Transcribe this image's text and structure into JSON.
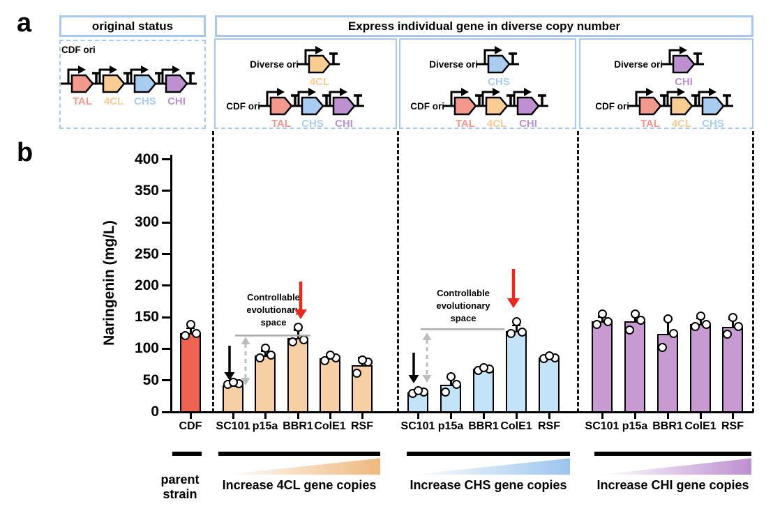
{
  "panel_a": {
    "label": "a",
    "headers": {
      "original": "original status",
      "express": "Express individual gene in diverse copy number"
    },
    "gene_colors": {
      "TAL": "#F2988C",
      "4CL": "#F8CC92",
      "CHS": "#A9CDF0",
      "CHI": "#BE90D1"
    },
    "diagrams": [
      {
        "box": "original-status",
        "rows": [
          {
            "ori": "CDF ori",
            "genes": [
              "TAL",
              "4CL",
              "CHS",
              "CHI"
            ]
          }
        ]
      },
      {
        "box": "4CL-diverse",
        "rows": [
          {
            "ori": "Diverse ori",
            "genes": [
              "4CL"
            ]
          },
          {
            "ori": "CDF ori",
            "genes": [
              "TAL",
              "CHS",
              "CHI"
            ]
          }
        ]
      },
      {
        "box": "CHS-diverse",
        "rows": [
          {
            "ori": "Diverse ori",
            "genes": [
              "CHS"
            ]
          },
          {
            "ori": "CDF ori",
            "genes": [
              "TAL",
              "4CL",
              "CHI"
            ]
          }
        ]
      },
      {
        "box": "CHI-diverse",
        "rows": [
          {
            "ori": "Diverse ori",
            "genes": [
              "CHI"
            ]
          },
          {
            "ori": "CDF ori",
            "genes": [
              "TAL",
              "4CL",
              "CHS"
            ]
          }
        ]
      }
    ]
  },
  "panel_b": {
    "label": "b"
  },
  "chart_data": {
    "type": "bar",
    "title": "",
    "xlabel": "",
    "ylabel": "Naringenin (mg/L)",
    "ylim": [
      0,
      400
    ],
    "yticks": [
      0,
      50,
      100,
      150,
      200,
      250,
      300,
      350,
      400
    ],
    "grid": false,
    "groups": [
      {
        "id": "parent",
        "caption": "parent strain",
        "bar_color": "#EE6352",
        "gradient_color": "",
        "categories": [
          "CDF"
        ],
        "values": [
          125
        ],
        "errors": [
          8
        ],
        "points": [
          [
            121,
            124,
            138
          ]
        ]
      },
      {
        "id": "4CL",
        "caption": "Increase 4CL gene copies",
        "bar_color": "#F6D0A4",
        "gradient_color": "#EFB87E",
        "categories": [
          "SC101",
          "p15a",
          "BBR1",
          "ColE1",
          "RSF"
        ],
        "values": [
          42,
          89,
          117,
          85,
          74
        ],
        "errors": [
          3,
          8,
          13,
          5,
          12
        ],
        "points": [
          [
            44,
            45,
            47
          ],
          [
            86,
            90,
            101
          ],
          [
            111,
            114,
            134
          ],
          [
            81,
            85,
            90
          ],
          [
            61,
            79,
            82
          ]
        ]
      },
      {
        "id": "CHS",
        "caption": "Increase CHS gene copies",
        "bar_color": "#C3E4F8",
        "gradient_color": "#9CC4EE",
        "categories": [
          "SC101",
          "p15a",
          "BBR1",
          "ColE1",
          "RSF"
        ],
        "values": [
          31,
          43,
          68,
          128,
          86
        ],
        "errors": [
          3,
          12,
          3,
          9,
          3
        ],
        "points": [
          [
            29,
            31,
            34
          ],
          [
            32,
            44,
            56
          ],
          [
            66,
            68,
            70
          ],
          [
            124,
            126,
            143
          ],
          [
            84,
            86,
            89
          ]
        ]
      },
      {
        "id": "CHI",
        "caption": "Increase CHI gene copies",
        "bar_color": "#C79AD1",
        "gradient_color": "#BE8FD0",
        "categories": [
          "SC101",
          "p15a",
          "BBR1",
          "ColE1",
          "RSF"
        ],
        "values": [
          143,
          143,
          124,
          139,
          135
        ],
        "errors": [
          8,
          13,
          22,
          9,
          12
        ],
        "points": [
          [
            138,
            143,
            155
          ],
          [
            130,
            145,
            155
          ],
          [
            102,
            124,
            147
          ],
          [
            135,
            139,
            152
          ],
          [
            123,
            135,
            150
          ]
        ]
      }
    ],
    "annotations": [
      {
        "group": "4CL",
        "space_text_lines": [
          "Controllable",
          "evolutionary",
          "space"
        ],
        "black_arrow_at": "SC101",
        "red_arrow_at": "BBR1",
        "gray_line_level": 121
      },
      {
        "group": "CHS",
        "space_text_lines": [
          "Controllable",
          "evolutionary",
          "space"
        ],
        "black_arrow_at": "SC101",
        "red_arrow_at": "ColE1",
        "gray_line_level": 131
      }
    ],
    "arrow_colors": {
      "red": "#E8291F",
      "black": "#000000",
      "gray": "#BDBDBD",
      "gray_line": "#A9A9A9"
    }
  }
}
